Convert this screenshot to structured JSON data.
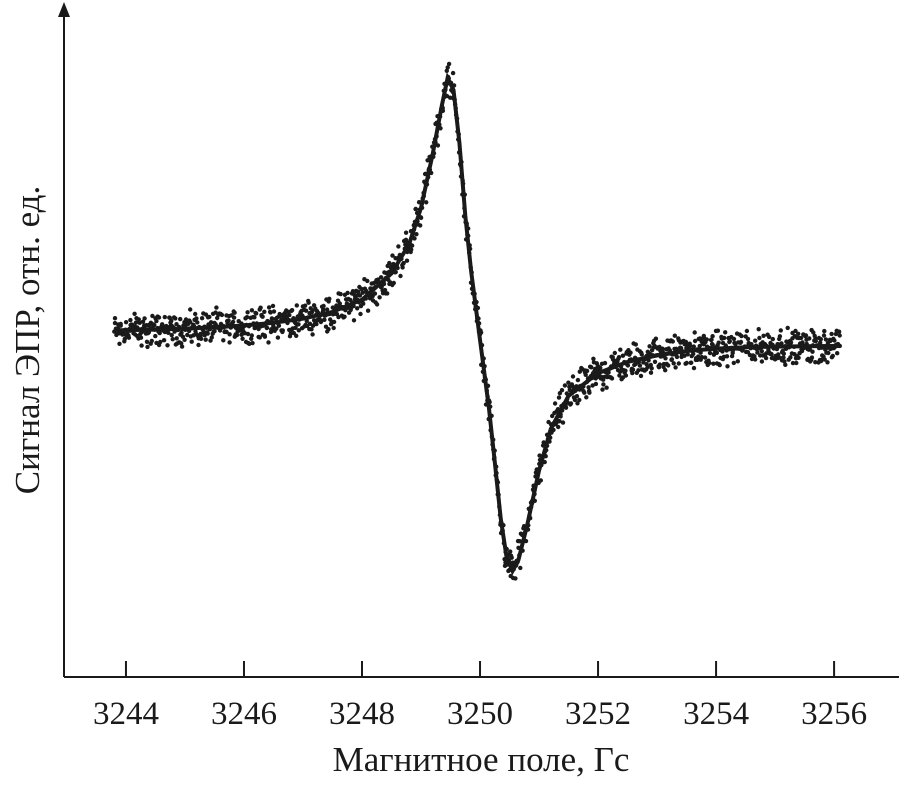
{
  "chart_data": {
    "type": "scatter",
    "xlabel": "Магнитное поле, Гс",
    "ylabel": "Сигнал ЭПР, отн. ед.",
    "x_ticks": [
      3244,
      3246,
      3248,
      3250,
      3252,
      3254,
      3256
    ],
    "xlim": [
      3242.95,
      3257.1
    ],
    "ylim": [
      -1.0,
      1.0
    ],
    "y_ticks_shown": false,
    "grid": false,
    "axis_arrow": "y-up",
    "x_range_data": [
      3243.8,
      3256.1
    ],
    "signal_model": {
      "shape": "first-derivative Lorentzian",
      "center": 3250.0,
      "peak_max_x": 3249.45,
      "peak_min_x": 3250.55,
      "peak_max_y": 0.75,
      "peak_min_y": -0.7,
      "baseline_left": 0.0,
      "baseline_right": -0.04
    },
    "fit_curve_points": [
      [
        3243.8,
        0.008
      ],
      [
        3244.5,
        0.01
      ],
      [
        3245.0,
        0.013
      ],
      [
        3245.5,
        0.017
      ],
      [
        3246.0,
        0.022
      ],
      [
        3246.5,
        0.03
      ],
      [
        3247.0,
        0.042
      ],
      [
        3247.5,
        0.062
      ],
      [
        3248.0,
        0.098
      ],
      [
        3248.5,
        0.175
      ],
      [
        3248.8,
        0.262
      ],
      [
        3249.0,
        0.368
      ],
      [
        3249.2,
        0.528
      ],
      [
        3249.35,
        0.667
      ],
      [
        3249.45,
        0.75
      ],
      [
        3249.55,
        0.715
      ],
      [
        3249.65,
        0.56
      ],
      [
        3249.75,
        0.345
      ],
      [
        3249.85,
        0.18
      ],
      [
        3250.0,
        -0.02
      ],
      [
        3250.15,
        -0.22
      ],
      [
        3250.25,
        -0.38
      ],
      [
        3250.35,
        -0.545
      ],
      [
        3250.45,
        -0.66
      ],
      [
        3250.55,
        -0.7
      ],
      [
        3250.65,
        -0.668
      ],
      [
        3250.8,
        -0.565
      ],
      [
        3251.0,
        -0.405
      ],
      [
        3251.2,
        -0.282
      ],
      [
        3251.5,
        -0.185
      ],
      [
        3252.0,
        -0.118
      ],
      [
        3252.5,
        -0.085
      ],
      [
        3253.0,
        -0.066
      ],
      [
        3253.5,
        -0.053
      ],
      [
        3254.0,
        -0.046
      ],
      [
        3254.5,
        -0.042
      ],
      [
        3255.0,
        -0.04
      ],
      [
        3255.5,
        -0.039
      ],
      [
        3256.1,
        -0.038
      ]
    ],
    "scatter_noise_amplitude": 0.06,
    "scatter_point_count": 1400,
    "colors": {
      "curve": "#1a1a1a",
      "points": "#1a1a1a",
      "axes": "#1a1a1a"
    }
  }
}
